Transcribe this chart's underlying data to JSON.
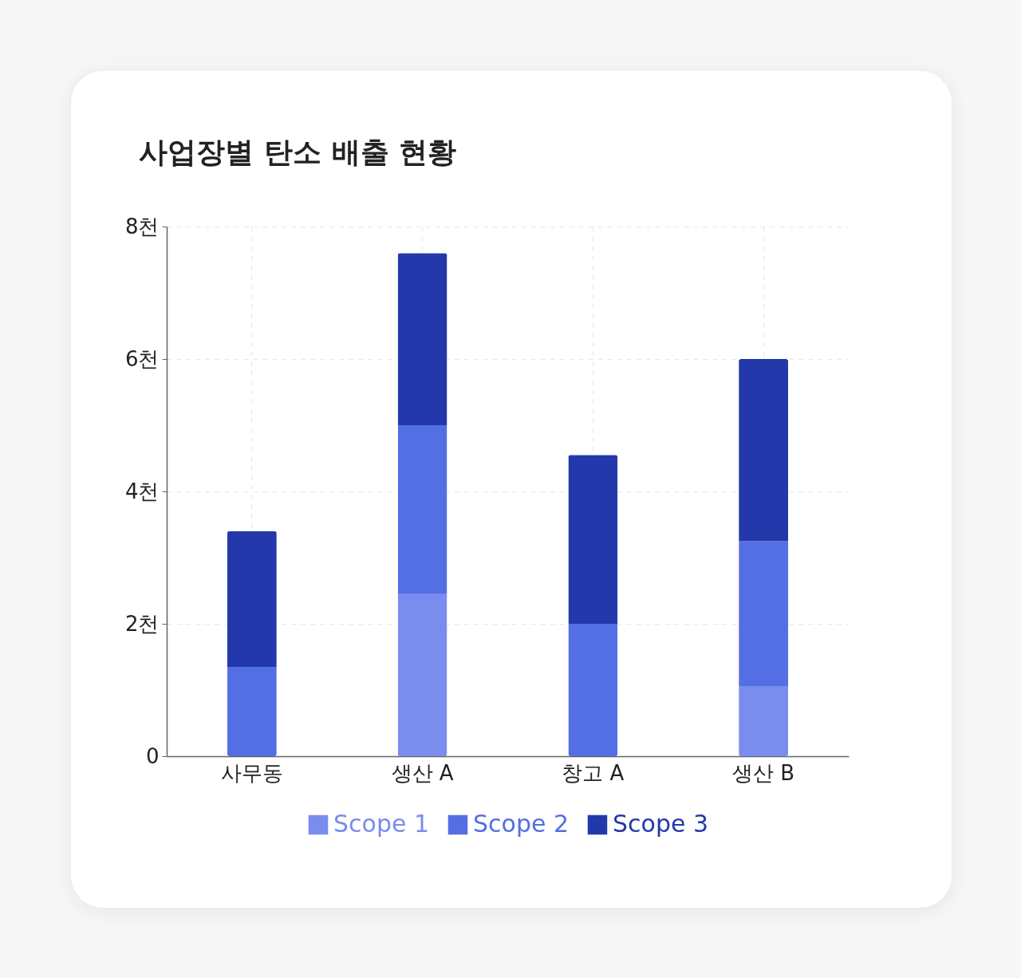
{
  "chart_data": {
    "type": "bar",
    "title": "사업장별 탄소 배출 현황",
    "categories": [
      "사무동",
      "생산 A",
      "창고 A",
      "생산 B"
    ],
    "stacked": true,
    "series": [
      {
        "name": "Scope 1",
        "color": "#7a8ced",
        "values": [
          0,
          2.45,
          0,
          1.05
        ]
      },
      {
        "name": "Scope 2",
        "color": "#546ee3",
        "values": [
          1.35,
          2.55,
          2.0,
          2.2
        ]
      },
      {
        "name": "Scope 3",
        "color": "#2339ab",
        "values": [
          2.05,
          2.6,
          2.55,
          2.75
        ]
      }
    ],
    "ylim": [
      0,
      8
    ],
    "yticks": [
      0,
      {
        "value": 2,
        "label": "2천"
      },
      {
        "value": 4,
        "label": "4천"
      },
      {
        "value": 6,
        "label": "6천"
      },
      {
        "value": 8,
        "label": "8천"
      }
    ],
    "grid": true,
    "legend": "bottom"
  }
}
